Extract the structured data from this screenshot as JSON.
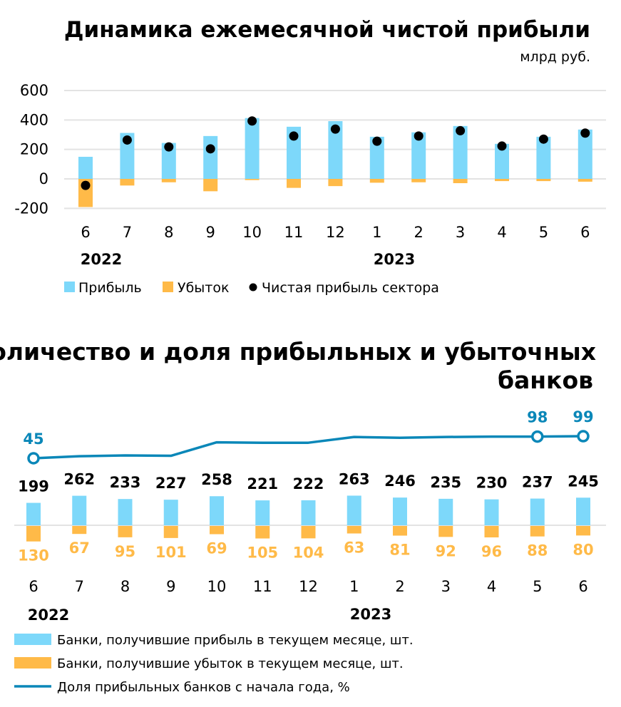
{
  "chart_data": [
    {
      "type": "bar",
      "title": "Динамика ежемесячной чистой прибыли",
      "subtitle": "млрд руб.",
      "categories": [
        "6",
        "7",
        "8",
        "9",
        "10",
        "11",
        "12",
        "1",
        "2",
        "3",
        "4",
        "5",
        "6"
      ],
      "year_labels": [
        "2022",
        "2023"
      ],
      "ylim": [
        -200,
        600
      ],
      "yticks": [
        "600",
        "400",
        "200",
        "0",
        "-200"
      ],
      "ytick_values": [
        600,
        400,
        200,
        0,
        -200
      ],
      "grid": true,
      "legend_position": "bottom",
      "colors": {
        "profit": "#7dd8fa",
        "loss": "#ffba48",
        "net": "#000000"
      },
      "series": [
        {
          "name": "Прибыль",
          "kind": "bar",
          "values": [
            150,
            312,
            244,
            291,
            413,
            354,
            392,
            286,
            316,
            359,
            238,
            286,
            335
          ]
        },
        {
          "name": "Убыток",
          "kind": "bar",
          "values": [
            -191,
            -45,
            -23,
            -84,
            -8,
            -61,
            -49,
            -26,
            -23,
            -29,
            -15,
            -15,
            -19
          ]
        },
        {
          "name": "Чистая прибыль сектора",
          "kind": "scatter",
          "values": [
            -44,
            264,
            217,
            204,
            393,
            291,
            338,
            256,
            291,
            327,
            223,
            270,
            311
          ]
        }
      ]
    },
    {
      "type": "bar",
      "title_line1": "Количество и доля прибыльных и убыточных",
      "title_line2": "банков",
      "categories": [
        "6",
        "7",
        "8",
        "9",
        "10",
        "11",
        "12",
        "1",
        "2",
        "3",
        "4",
        "5",
        "6"
      ],
      "year_labels": [
        "2022",
        "2023"
      ],
      "legend_position": "bottom",
      "colors": {
        "profit": "#7dd8fa",
        "loss": "#ffba48",
        "share": "#0a87b8"
      },
      "series": [
        {
          "name": "Банки, получившие прибыль в текущем месяце, шт.",
          "kind": "bar",
          "values": [
            199,
            262,
            233,
            227,
            258,
            221,
            222,
            263,
            246,
            235,
            230,
            237,
            245
          ]
        },
        {
          "name": "Банки, получившие убыток в текущем месяце, шт.",
          "kind": "bar",
          "values": [
            130,
            67,
            95,
            101,
            69,
            105,
            104,
            63,
            81,
            92,
            96,
            88,
            80
          ]
        },
        {
          "name": "Доля прибыльных банков с начала года, %",
          "kind": "line",
          "values": [
            45,
            50,
            52,
            51,
            84,
            83,
            83,
            97,
            95,
            97,
            98,
            98,
            99
          ],
          "labeled_points": {
            "0": "45",
            "11": "98",
            "12": "99"
          }
        }
      ]
    }
  ]
}
